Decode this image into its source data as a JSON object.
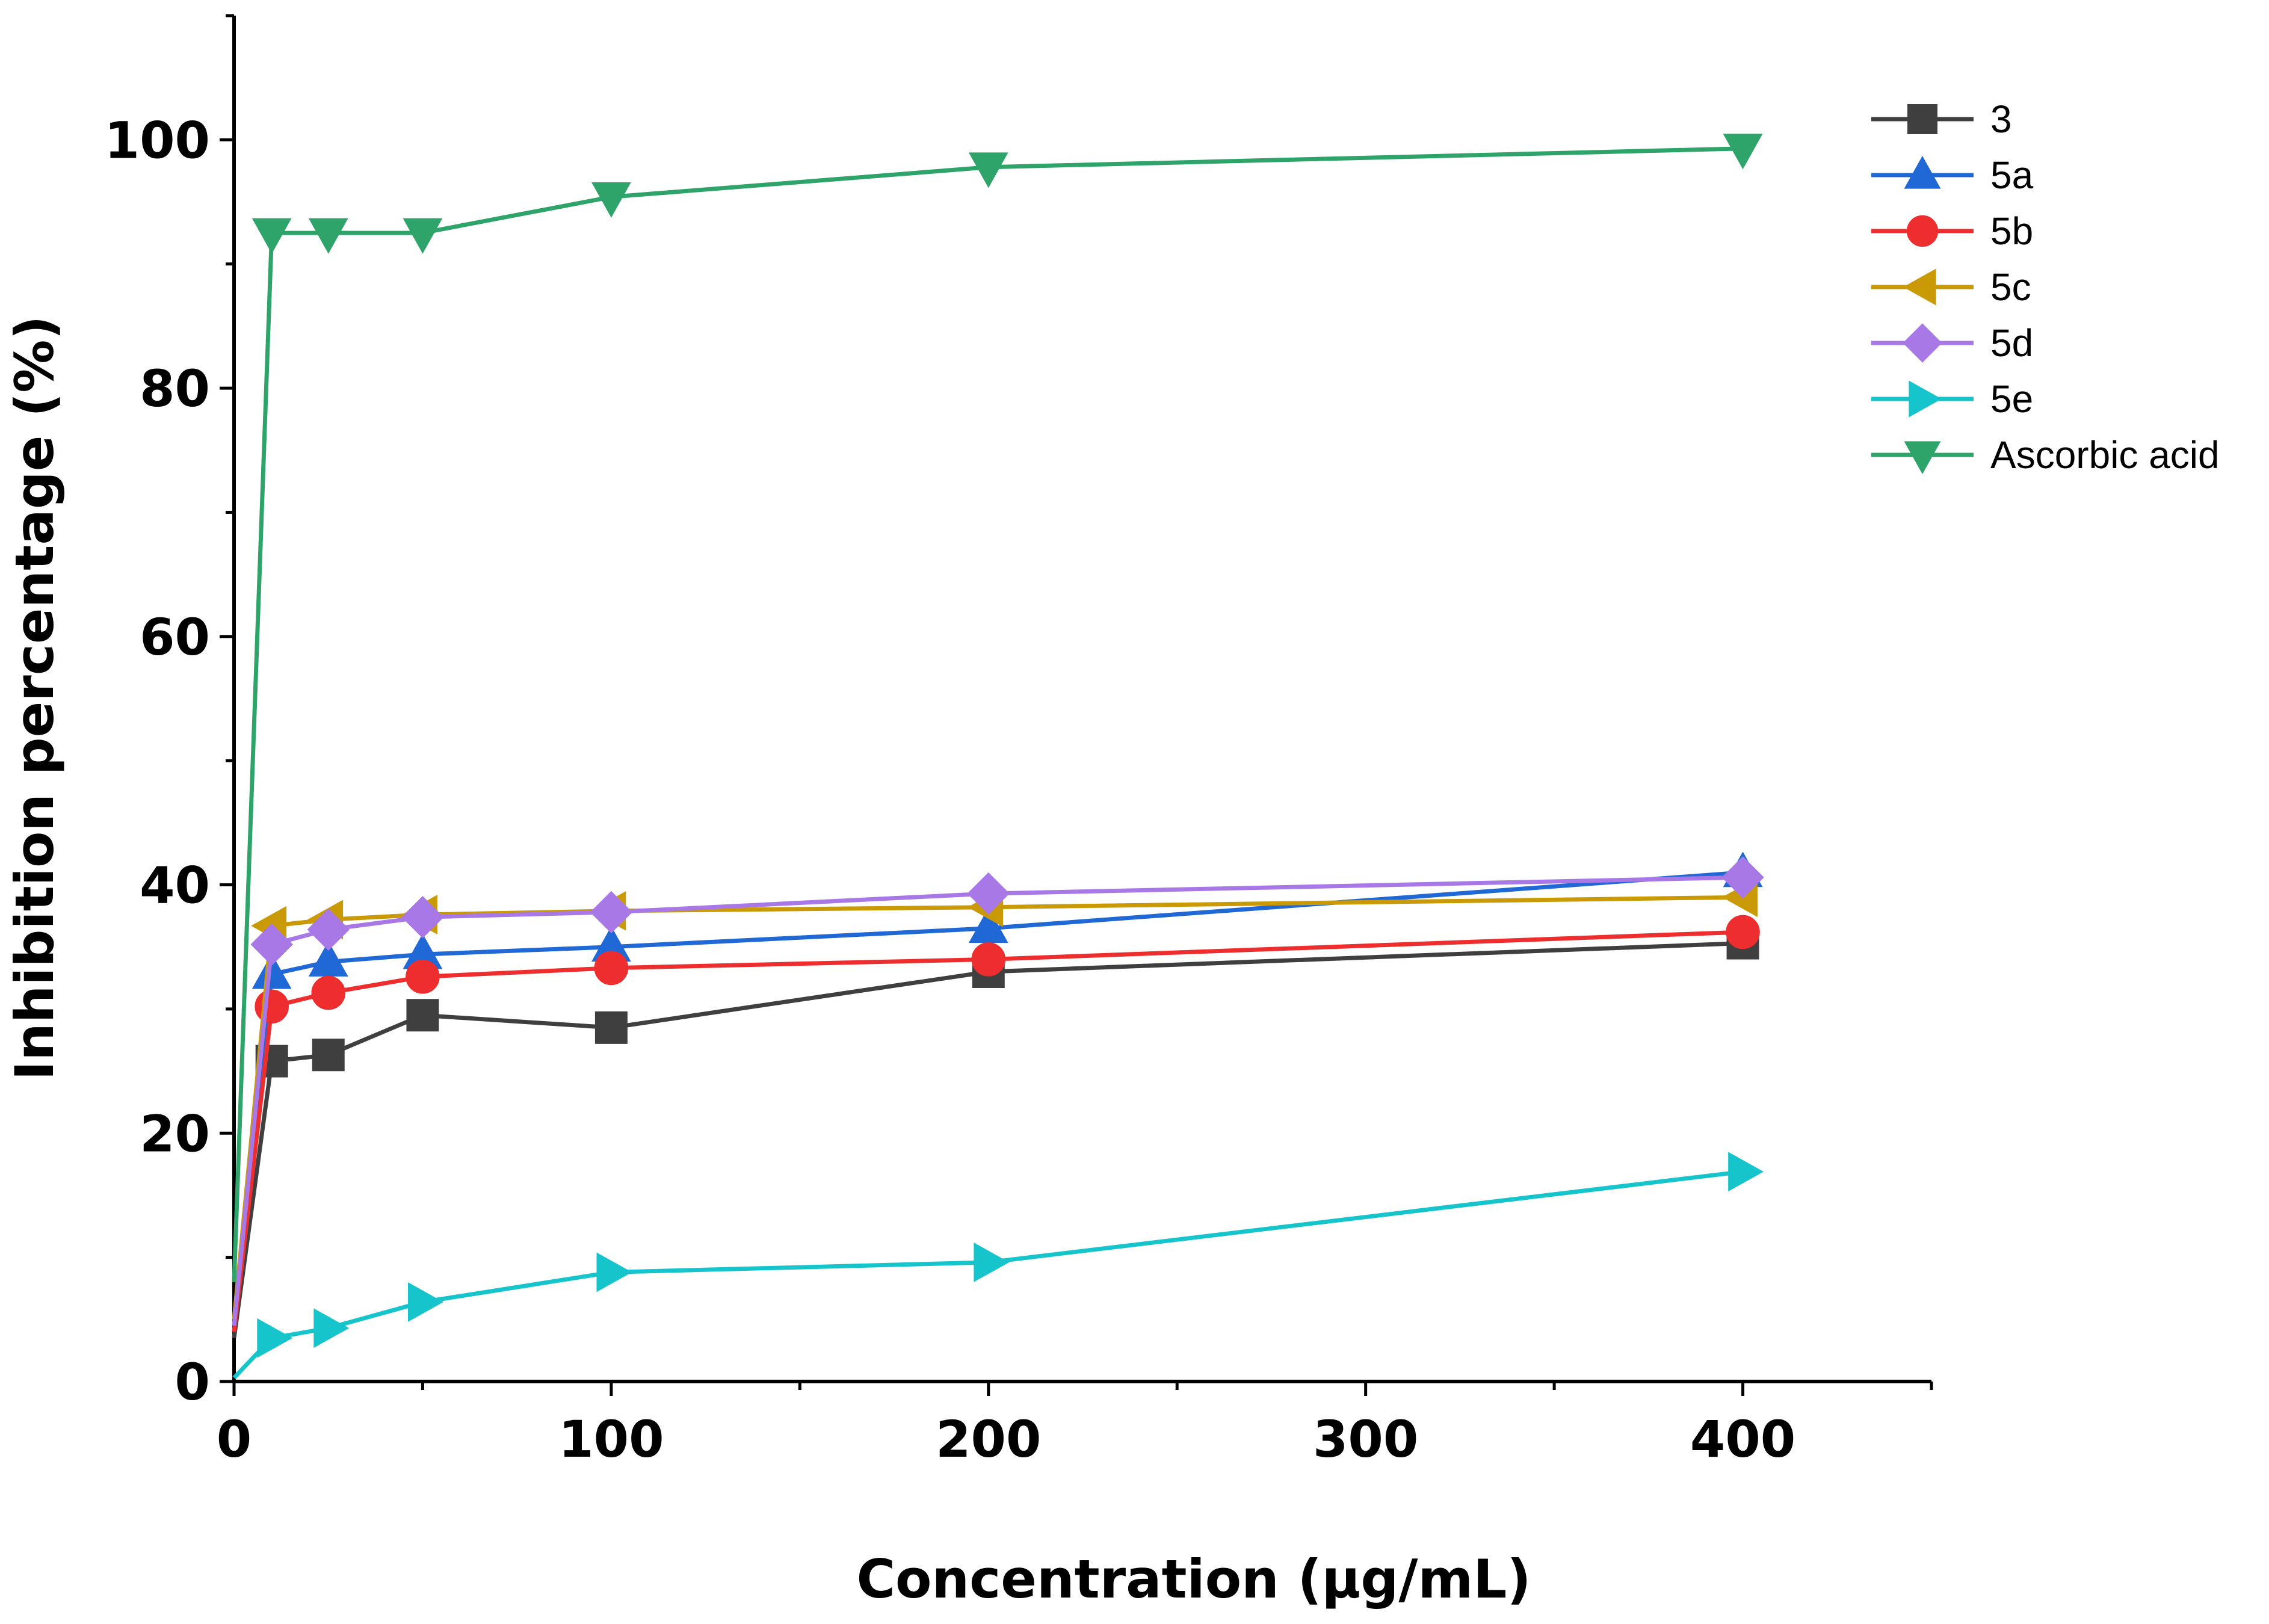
{
  "chart_data": {
    "type": "line",
    "title": "",
    "xlabel": "Concentration (µg/mL)",
    "ylabel": "Inhibition percentage (%)",
    "xlim": [
      0,
      450
    ],
    "ylim": [
      0,
      110
    ],
    "xticks": [
      0,
      100,
      200,
      300,
      400
    ],
    "yticks": [
      0,
      20,
      40,
      60,
      80,
      100
    ],
    "grid": false,
    "legend_position": "top-right",
    "x": [
      0,
      10,
      25,
      50,
      100,
      200,
      400
    ],
    "series": [
      {
        "name": "3",
        "color": "#3f3f3f",
        "marker": "square",
        "values": [
          3.5,
          25.8,
          26.3,
          29.5,
          28.5,
          33.0,
          35.3
        ]
      },
      {
        "name": "5a",
        "color": "#1f68d6",
        "marker": "triangle-up",
        "values": [
          4.0,
          32.8,
          33.8,
          34.4,
          35.0,
          36.5,
          41.0
        ]
      },
      {
        "name": "5b",
        "color": "#ee2e2e",
        "marker": "circle",
        "values": [
          4.0,
          30.2,
          31.3,
          32.6,
          33.3,
          34.0,
          36.2
        ]
      },
      {
        "name": "5c",
        "color": "#c99a06",
        "marker": "triangle-left",
        "values": [
          5.0,
          36.7,
          37.2,
          37.6,
          37.9,
          38.2,
          39.0
        ]
      },
      {
        "name": "5d",
        "color": "#a879e6",
        "marker": "diamond",
        "values": [
          4.5,
          35.2,
          36.4,
          37.4,
          37.8,
          39.3,
          40.6
        ]
      },
      {
        "name": "5e",
        "color": "#16c4cc",
        "marker": "triangle-right",
        "values": [
          0.3,
          3.5,
          4.3,
          6.4,
          8.8,
          9.6,
          16.9
        ]
      },
      {
        "name": "Ascorbic acid",
        "color": "#2ea46a",
        "marker": "triangle-down",
        "values": [
          8.0,
          92.5,
          92.5,
          92.5,
          95.4,
          97.8,
          99.3
        ]
      }
    ]
  }
}
